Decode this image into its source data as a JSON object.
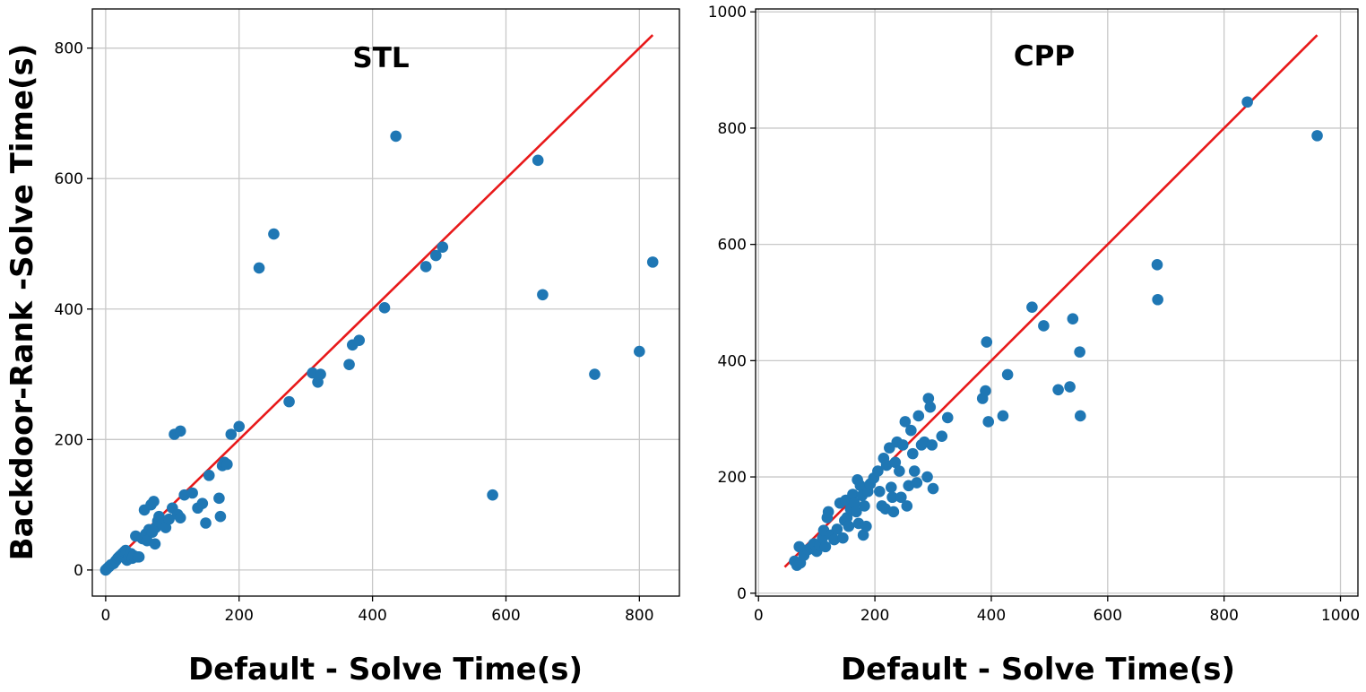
{
  "ylabel": "Backdoor-Rank -Solve Time(s)",
  "chart_data": [
    {
      "type": "scatter",
      "title": "STL",
      "xlabel": "Default - Solve Time(s)",
      "ylabel": "Backdoor-Rank -Solve Time(s)",
      "xlim": [
        -20,
        860
      ],
      "ylim": [
        -40,
        860
      ],
      "xticks": [
        0,
        200,
        400,
        600,
        800
      ],
      "yticks": [
        0,
        200,
        400,
        600,
        800
      ],
      "grid": true,
      "color": "#1f77b4",
      "line_color": "#e8191a",
      "reference_line": {
        "x": [
          0,
          820
        ],
        "y": [
          0,
          820
        ]
      },
      "points": [
        [
          0,
          0
        ],
        [
          2,
          2
        ],
        [
          5,
          5
        ],
        [
          8,
          8
        ],
        [
          12,
          10
        ],
        [
          15,
          14
        ],
        [
          18,
          18
        ],
        [
          20,
          20
        ],
        [
          22,
          22
        ],
        [
          25,
          25
        ],
        [
          28,
          28
        ],
        [
          30,
          30
        ],
        [
          32,
          15
        ],
        [
          35,
          20
        ],
        [
          38,
          25
        ],
        [
          40,
          18
        ],
        [
          42,
          22
        ],
        [
          45,
          52
        ],
        [
          48,
          20
        ],
        [
          50,
          20
        ],
        [
          55,
          48
        ],
        [
          58,
          92
        ],
        [
          60,
          55
        ],
        [
          62,
          45
        ],
        [
          65,
          62
        ],
        [
          68,
          100
        ],
        [
          70,
          58
        ],
        [
          72,
          105
        ],
        [
          74,
          40
        ],
        [
          75,
          65
        ],
        [
          78,
          75
        ],
        [
          80,
          82
        ],
        [
          85,
          70
        ],
        [
          90,
          65
        ],
        [
          95,
          78
        ],
        [
          100,
          95
        ],
        [
          103,
          208
        ],
        [
          108,
          85
        ],
        [
          112,
          213
        ],
        [
          112,
          80
        ],
        [
          118,
          115
        ],
        [
          130,
          118
        ],
        [
          138,
          95
        ],
        [
          145,
          102
        ],
        [
          150,
          72
        ],
        [
          155,
          145
        ],
        [
          170,
          110
        ],
        [
          172,
          82
        ],
        [
          175,
          160
        ],
        [
          178,
          165
        ],
        [
          182,
          162
        ],
        [
          188,
          208
        ],
        [
          200,
          220
        ],
        [
          230,
          463
        ],
        [
          252,
          515
        ],
        [
          275,
          258
        ],
        [
          310,
          302
        ],
        [
          318,
          288
        ],
        [
          322,
          300
        ],
        [
          365,
          315
        ],
        [
          370,
          345
        ],
        [
          380,
          352
        ],
        [
          418,
          402
        ],
        [
          435,
          665
        ],
        [
          480,
          465
        ],
        [
          495,
          482
        ],
        [
          505,
          495
        ],
        [
          580,
          115
        ],
        [
          648,
          628
        ],
        [
          655,
          422
        ],
        [
          733,
          300
        ],
        [
          800,
          335
        ],
        [
          820,
          472
        ]
      ]
    },
    {
      "type": "scatter",
      "title": "CPP",
      "xlabel": "Default - Solve Time(s)",
      "ylabel": "",
      "xlim": [
        -5,
        1030
      ],
      "ylim": [
        -5,
        1005
      ],
      "xticks": [
        0,
        200,
        400,
        600,
        800,
        1000
      ],
      "yticks": [
        0,
        200,
        400,
        600,
        800,
        1000
      ],
      "grid": true,
      "color": "#1f77b4",
      "line_color": "#e8191a",
      "reference_line": {
        "x": [
          45,
          960
        ],
        "y": [
          45,
          960
        ]
      },
      "points": [
        [
          62,
          55
        ],
        [
          66,
          48
        ],
        [
          70,
          80
        ],
        [
          72,
          52
        ],
        [
          78,
          65
        ],
        [
          85,
          75
        ],
        [
          90,
          78
        ],
        [
          95,
          85
        ],
        [
          100,
          72
        ],
        [
          105,
          82
        ],
        [
          110,
          95
        ],
        [
          112,
          108
        ],
        [
          115,
          80
        ],
        [
          118,
          130
        ],
        [
          120,
          140
        ],
        [
          125,
          100
        ],
        [
          130,
          92
        ],
        [
          135,
          110
        ],
        [
          140,
          155
        ],
        [
          145,
          95
        ],
        [
          148,
          125
        ],
        [
          150,
          160
        ],
        [
          152,
          130
        ],
        [
          155,
          115
        ],
        [
          158,
          145
        ],
        [
          160,
          162
        ],
        [
          162,
          170
        ],
        [
          165,
          155
        ],
        [
          168,
          140
        ],
        [
          170,
          195
        ],
        [
          172,
          120
        ],
        [
          175,
          185
        ],
        [
          178,
          168
        ],
        [
          180,
          100
        ],
        [
          182,
          150
        ],
        [
          185,
          115
        ],
        [
          188,
          175
        ],
        [
          192,
          188
        ],
        [
          198,
          198
        ],
        [
          205,
          210
        ],
        [
          208,
          175
        ],
        [
          212,
          150
        ],
        [
          215,
          232
        ],
        [
          218,
          145
        ],
        [
          220,
          220
        ],
        [
          225,
          250
        ],
        [
          228,
          182
        ],
        [
          230,
          165
        ],
        [
          232,
          140
        ],
        [
          235,
          225
        ],
        [
          238,
          260
        ],
        [
          242,
          210
        ],
        [
          245,
          165
        ],
        [
          248,
          255
        ],
        [
          252,
          295
        ],
        [
          255,
          150
        ],
        [
          258,
          185
        ],
        [
          262,
          280
        ],
        [
          265,
          240
        ],
        [
          268,
          210
        ],
        [
          272,
          190
        ],
        [
          275,
          305
        ],
        [
          280,
          255
        ],
        [
          285,
          260
        ],
        [
          290,
          200
        ],
        [
          292,
          335
        ],
        [
          295,
          320
        ],
        [
          298,
          255
        ],
        [
          300,
          180
        ],
        [
          315,
          270
        ],
        [
          325,
          302
        ],
        [
          385,
          335
        ],
        [
          390,
          348
        ],
        [
          392,
          432
        ],
        [
          395,
          295
        ],
        [
          420,
          305
        ],
        [
          428,
          376
        ],
        [
          470,
          492
        ],
        [
          490,
          460
        ],
        [
          515,
          350
        ],
        [
          535,
          355
        ],
        [
          540,
          472
        ],
        [
          552,
          415
        ],
        [
          553,
          305
        ],
        [
          685,
          565
        ],
        [
          686,
          505
        ],
        [
          840,
          845
        ],
        [
          960,
          787
        ]
      ]
    }
  ]
}
